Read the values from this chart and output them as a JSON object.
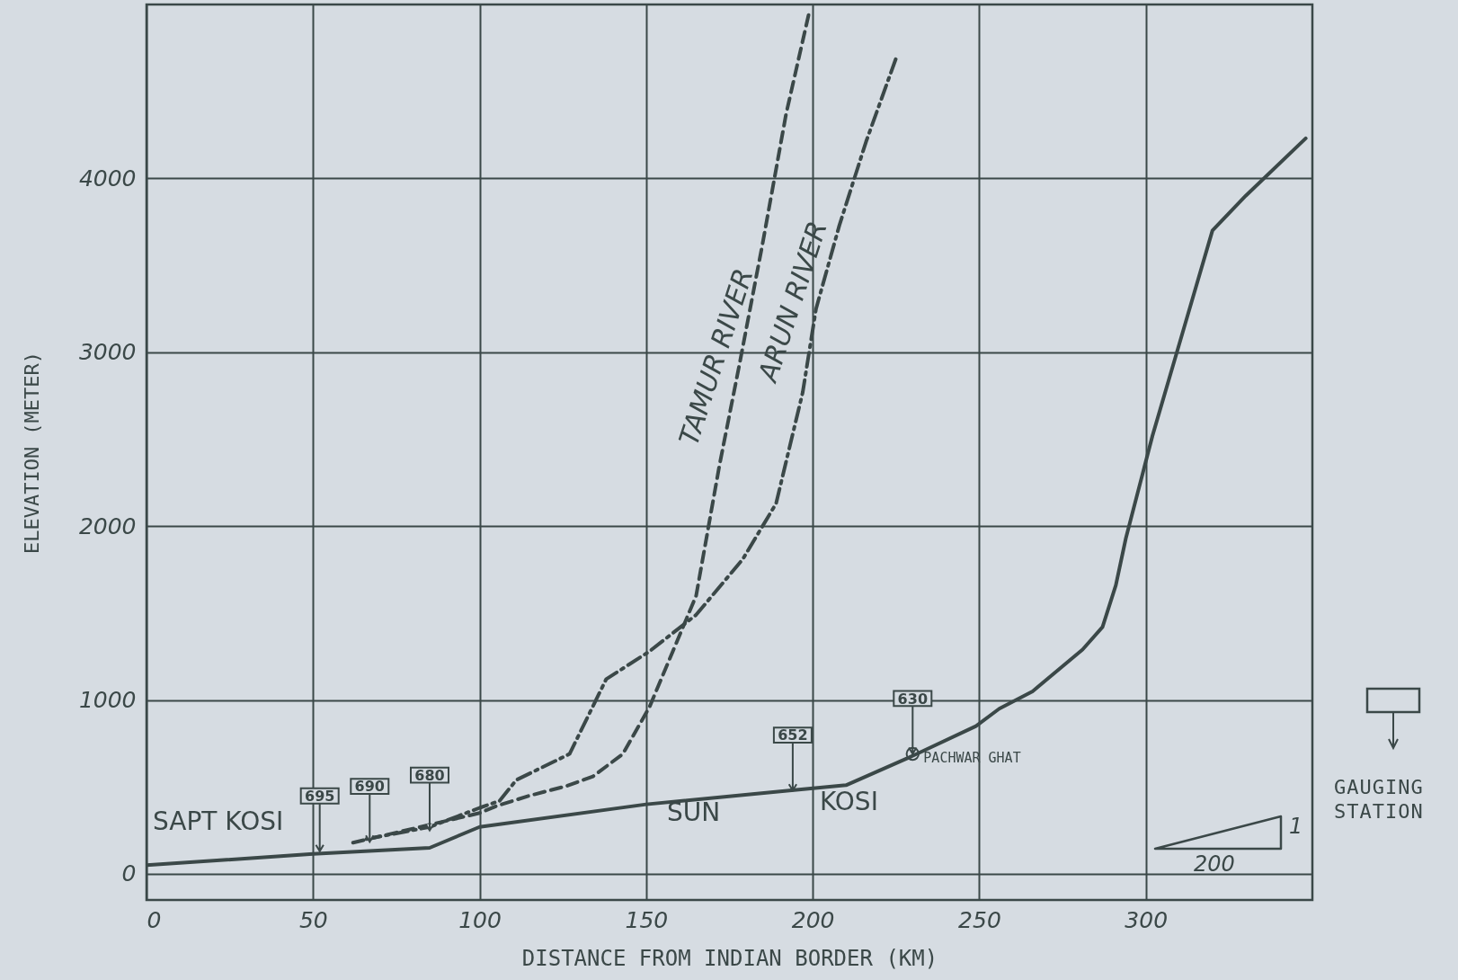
{
  "chart_data": {
    "type": "line",
    "xlabel": "DISTANCE FROM INDIAN BORDER (KM)",
    "ylabel": "ELEVATION (METER)",
    "xlim": [
      0,
      350
    ],
    "ylim": [
      -150,
      5000
    ],
    "xticks": [
      0,
      50,
      100,
      150,
      200,
      250,
      300
    ],
    "yticks": [
      0,
      1000,
      2000,
      3000,
      4000
    ],
    "grid": true,
    "marker": "none",
    "series": [
      {
        "color": "#3b4848",
        "line_style": "solid",
        "x": [
          0,
          50,
          85,
          100,
          150,
          193,
          210,
          229,
          249,
          256,
          266,
          281,
          287,
          291,
          294,
          302,
          311,
          320,
          330,
          348
        ],
        "values": [
          50,
          115,
          150,
          270,
          400,
          480,
          510,
          670,
          850,
          950,
          1050,
          1290,
          1420,
          1660,
          1930,
          2520,
          3110,
          3700,
          3900,
          4230
        ]
      },
      {
        "name": "TAMUR RIVER",
        "color": "#3b4848",
        "line_style": "dashed",
        "x": [
          62,
          80,
          100,
          105,
          115,
          126,
          134,
          143,
          151,
          158,
          165,
          172,
          178,
          185,
          192,
          199
        ],
        "values": [
          180,
          260,
          350,
          390,
          450,
          505,
          560,
          690,
          960,
          1280,
          1600,
          2350,
          2930,
          3630,
          4370,
          4960
        ]
      },
      {
        "name": "ARUN RIVER",
        "color": "#3b4848",
        "line_style": "dashdot",
        "x": [
          66,
          85,
          100,
          106,
          111,
          127,
          138,
          151,
          165,
          179,
          189,
          197,
          201,
          208,
          216,
          225
        ],
        "values": [
          200,
          270,
          380,
          420,
          540,
          690,
          1120,
          1280,
          1490,
          1810,
          2130,
          2770,
          3250,
          3730,
          4210,
          4690
        ]
      }
    ],
    "annotations": [
      "SAPT KOSI",
      "SUN",
      "KOSI",
      {
        "text": "695",
        "x": 52,
        "y": 130
      },
      {
        "text": "690",
        "x": 67,
        "y": 185
      },
      {
        "text": "680",
        "x": 85,
        "y": 250
      },
      {
        "text": "652",
        "x": 194,
        "y": 480
      },
      {
        "text": "630",
        "x": 230,
        "y": 690
      },
      {
        "text": "PACHWAR GHAT",
        "x": 230,
        "y": 690
      },
      "GAUGING STATION",
      "200",
      "1"
    ]
  }
}
